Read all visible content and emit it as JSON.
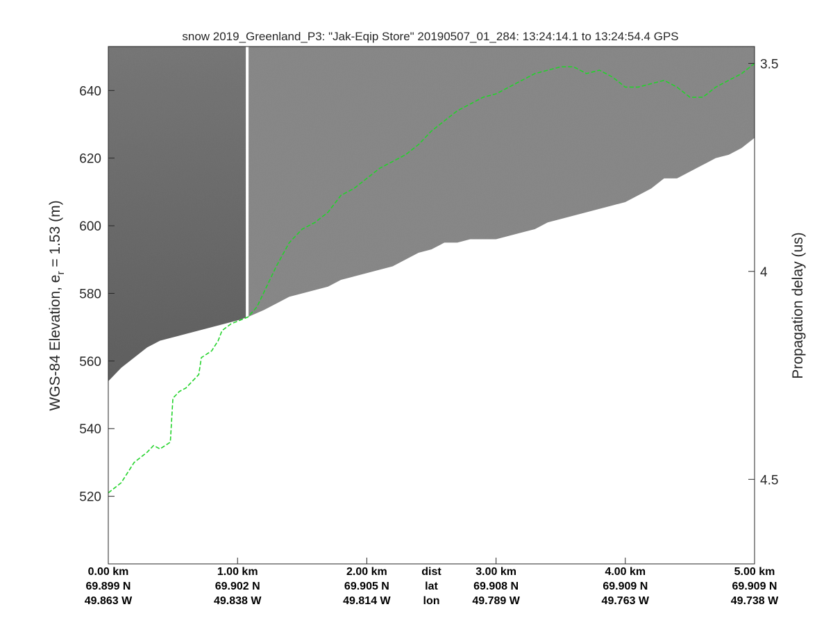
{
  "chart_data": {
    "type": "radar-echogram",
    "title": "snow 2019_Greenland_P3: \"Jak-Eqip Store\"  20190507_01_284: 13:24:14.1 to 13:24:54.4 GPS",
    "ylabel_left": "WGS-84 Elevation, e",
    "ylabel_left_sub": "r",
    "ylabel_left_tail": " = 1.53 (m)",
    "ylabel_right": "Propagation delay (us)",
    "x_range_km": [
      0,
      5
    ],
    "y_range_m": [
      500,
      653
    ],
    "y_ticks_left": [
      520,
      540,
      560,
      580,
      600,
      620,
      640
    ],
    "y_ticks_right": [
      {
        "label": "3.5",
        "value": 648.0
      },
      {
        "label": "4",
        "value": 586.5
      },
      {
        "label": "4.5",
        "value": 525.0
      }
    ],
    "x_ticks": [
      {
        "km": 0,
        "dist": "0.00 km",
        "lat": "69.899 N",
        "lon": "49.863 W"
      },
      {
        "km": 1,
        "dist": "1.00 km",
        "lat": "69.902 N",
        "lon": "49.838 W"
      },
      {
        "km": 2,
        "dist": "2.00 km",
        "lat": "69.905 N",
        "lon": "49.814 W"
      },
      {
        "km": 3,
        "dist": "3.00 km",
        "lat": "69.908 N",
        "lon": "49.789 W"
      },
      {
        "km": 4,
        "dist": "4.00 km",
        "lat": "69.909 N",
        "lon": "49.763 W"
      },
      {
        "km": 5,
        "dist": "5.00 km",
        "lat": "69.909 N",
        "lon": "49.738 W"
      }
    ],
    "row_labels": {
      "dist": "dist",
      "lat": "lat",
      "lon": "lon"
    },
    "data_gap_km": 1.08,
    "surface_pick": [
      [
        0.0,
        521
      ],
      [
        0.1,
        524
      ],
      [
        0.15,
        527
      ],
      [
        0.2,
        530
      ],
      [
        0.3,
        533
      ],
      [
        0.35,
        535
      ],
      [
        0.4,
        534
      ],
      [
        0.48,
        536
      ],
      [
        0.5,
        549
      ],
      [
        0.55,
        551
      ],
      [
        0.6,
        552
      ],
      [
        0.65,
        554
      ],
      [
        0.7,
        556
      ],
      [
        0.72,
        561
      ],
      [
        0.8,
        563
      ],
      [
        0.85,
        566
      ],
      [
        0.88,
        569
      ],
      [
        0.95,
        571
      ],
      [
        1.08,
        573
      ],
      [
        1.15,
        576
      ],
      [
        1.2,
        580
      ],
      [
        1.3,
        588
      ],
      [
        1.4,
        595
      ],
      [
        1.5,
        599
      ],
      [
        1.6,
        601
      ],
      [
        1.7,
        604
      ],
      [
        1.8,
        609
      ],
      [
        1.9,
        611
      ],
      [
        2.0,
        614
      ],
      [
        2.1,
        617
      ],
      [
        2.2,
        619
      ],
      [
        2.3,
        621
      ],
      [
        2.4,
        624
      ],
      [
        2.5,
        628
      ],
      [
        2.6,
        631
      ],
      [
        2.7,
        634
      ],
      [
        2.8,
        636
      ],
      [
        2.9,
        638
      ],
      [
        3.0,
        639
      ],
      [
        3.1,
        641
      ],
      [
        3.2,
        643
      ],
      [
        3.3,
        645
      ],
      [
        3.4,
        646
      ],
      [
        3.5,
        647
      ],
      [
        3.6,
        647
      ],
      [
        3.7,
        645
      ],
      [
        3.8,
        646
      ],
      [
        3.9,
        644
      ],
      [
        4.0,
        641
      ],
      [
        4.1,
        641
      ],
      [
        4.2,
        642
      ],
      [
        4.3,
        643
      ],
      [
        4.4,
        641
      ],
      [
        4.5,
        638
      ],
      [
        4.6,
        638
      ],
      [
        4.7,
        641
      ],
      [
        4.8,
        643
      ],
      [
        4.9,
        645
      ],
      [
        5.0,
        648
      ]
    ],
    "data_bottom_edge": [
      [
        0.0,
        554
      ],
      [
        0.1,
        558
      ],
      [
        0.2,
        561
      ],
      [
        0.3,
        564
      ],
      [
        0.4,
        566
      ],
      [
        0.5,
        567
      ],
      [
        0.6,
        568
      ],
      [
        0.7,
        569
      ],
      [
        0.8,
        570
      ],
      [
        0.9,
        571
      ],
      [
        1.0,
        572
      ],
      [
        1.08,
        573
      ],
      [
        1.2,
        575
      ],
      [
        1.3,
        577
      ],
      [
        1.4,
        579
      ],
      [
        1.5,
        580
      ],
      [
        1.6,
        581
      ],
      [
        1.7,
        582
      ],
      [
        1.8,
        584
      ],
      [
        1.9,
        585
      ],
      [
        2.0,
        586
      ],
      [
        2.1,
        587
      ],
      [
        2.2,
        588
      ],
      [
        2.3,
        590
      ],
      [
        2.4,
        592
      ],
      [
        2.5,
        593
      ],
      [
        2.6,
        595
      ],
      [
        2.7,
        595
      ],
      [
        2.8,
        596
      ],
      [
        2.9,
        596
      ],
      [
        3.0,
        596
      ],
      [
        3.1,
        597
      ],
      [
        3.2,
        598
      ],
      [
        3.3,
        599
      ],
      [
        3.4,
        601
      ],
      [
        3.5,
        602
      ],
      [
        3.6,
        603
      ],
      [
        3.7,
        604
      ],
      [
        3.8,
        605
      ],
      [
        3.9,
        606
      ],
      [
        4.0,
        607
      ],
      [
        4.1,
        609
      ],
      [
        4.2,
        611
      ],
      [
        4.3,
        614
      ],
      [
        4.4,
        614
      ],
      [
        4.5,
        616
      ],
      [
        4.6,
        618
      ],
      [
        4.7,
        620
      ],
      [
        4.8,
        621
      ],
      [
        4.9,
        623
      ],
      [
        5.0,
        626
      ]
    ],
    "colors": {
      "echogram_light": "#8c8c8c",
      "echogram_dark": "#5e5e5e",
      "surface_pick": "#22d32a",
      "axis": "#262626"
    }
  }
}
